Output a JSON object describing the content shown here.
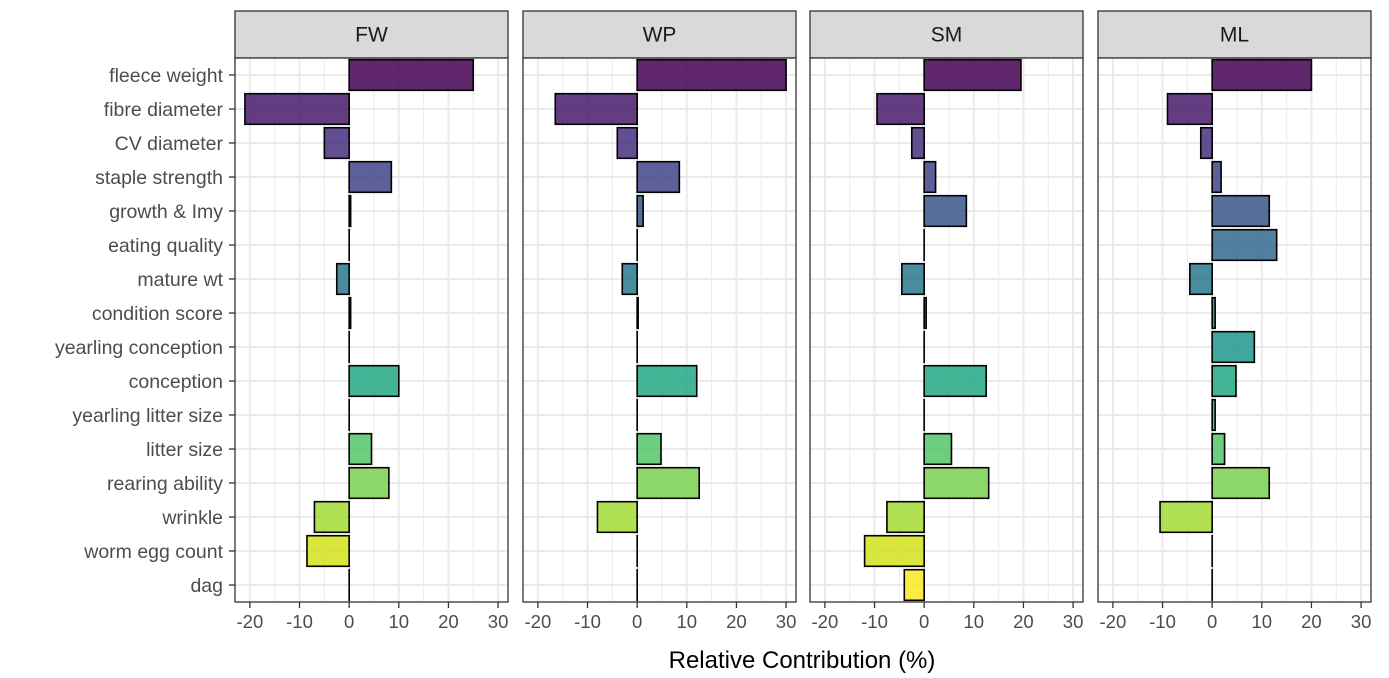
{
  "chart_data": {
    "type": "bar",
    "orientation": "horizontal",
    "facets": [
      "FW",
      "WP",
      "SM",
      "ML"
    ],
    "categories": [
      "fleece weight",
      "fibre diameter",
      "CV diameter",
      "staple strength",
      "growth & Imy",
      "eating quality",
      "mature wt",
      "condition score",
      "yearling conception",
      "conception",
      "yearling litter size",
      "litter size",
      "rearing ability",
      "wrinkle",
      "worm egg count",
      "dag"
    ],
    "series": [
      {
        "name": "FW",
        "values": [
          25,
          -21,
          -5,
          8.5,
          0.3,
          0,
          -2.5,
          0.3,
          0,
          10,
          0,
          4.5,
          8,
          -7,
          -8.5,
          0
        ]
      },
      {
        "name": "WP",
        "values": [
          30,
          -16.5,
          -4,
          8.5,
          1.2,
          0,
          -3,
          0.2,
          0,
          12,
          0,
          4.8,
          12.5,
          -8,
          0,
          0
        ]
      },
      {
        "name": "SM",
        "values": [
          19.5,
          -9.5,
          -2.5,
          2.3,
          8.5,
          0,
          -4.5,
          0.4,
          0,
          12.5,
          0,
          5.5,
          13,
          -7.5,
          -12,
          -4
        ]
      },
      {
        "name": "ML",
        "values": [
          20,
          -9,
          -2.3,
          1.8,
          11.5,
          13,
          -4.5,
          0.6,
          8.5,
          4.8,
          0.6,
          2.5,
          11.5,
          -10.5,
          0,
          0
        ]
      }
    ],
    "fill_colors": [
      "#440154",
      "#481a6c",
      "#472f7d",
      "#414487",
      "#39568c",
      "#31688e",
      "#2a788e",
      "#23888e",
      "#1f988b",
      "#22a884",
      "#35b779",
      "#54c568",
      "#7ad151",
      "#a5db36",
      "#d2e21b",
      "#fde725"
    ],
    "xlim": [
      -23,
      32
    ],
    "xticks": [
      -20,
      -10,
      0,
      10,
      20,
      30
    ],
    "xtick_labels": [
      "-20",
      "-10",
      "0",
      "10",
      "20",
      "30"
    ],
    "xlabel": "Relative Contribution (%)",
    "ylabel": "",
    "grid": true,
    "legend": "none",
    "panel_background": "#ffffff",
    "strip_background": "#d9d9d9",
    "grid_color": "#ebebeb"
  }
}
